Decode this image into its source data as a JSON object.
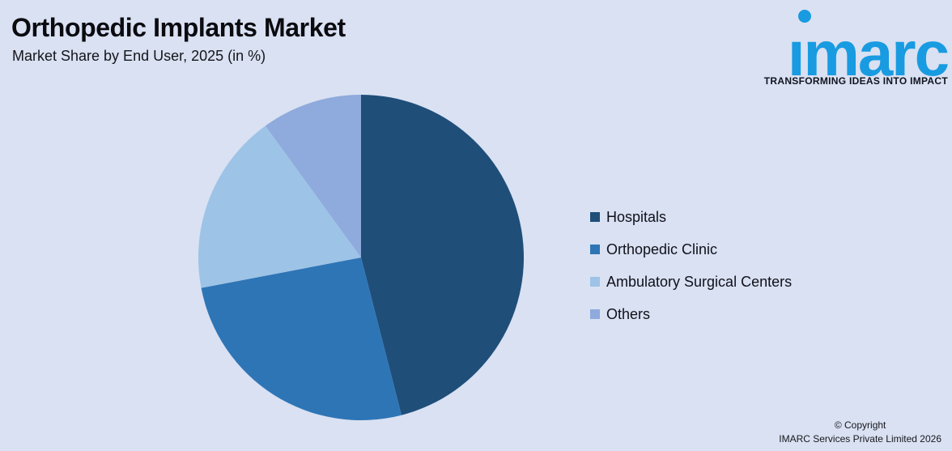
{
  "header": {
    "title": "Orthopedic Implants Market",
    "subtitle": "Market Share by End User, 2025 (in %)"
  },
  "logo": {
    "brand": "imarc",
    "wordmark": "ımarc",
    "tagline": "TRANSFORMING IDEAS INTO IMPACT",
    "color": "#189BE1"
  },
  "chart_data": {
    "type": "pie",
    "title": "Orthopedic Implants Market",
    "subtitle": "Market Share by End User, 2025 (in %)",
    "unit": "%",
    "labels": [
      "Hospitals",
      "Orthopedic Clinic",
      "Ambulatory Surgical Centers",
      "Others"
    ],
    "values": [
      46,
      26,
      18,
      10
    ],
    "colors": [
      "#1F4E79",
      "#2E75B6",
      "#9DC3E6",
      "#8FAADC"
    ],
    "start_angle": "12-oclock",
    "direction": "clockwise",
    "legend_position": "right",
    "data_labels": false,
    "background": "#D9E1F2"
  },
  "footer": {
    "line1": "© Copyright",
    "line2": "IMARC Services Private Limited 2026"
  }
}
